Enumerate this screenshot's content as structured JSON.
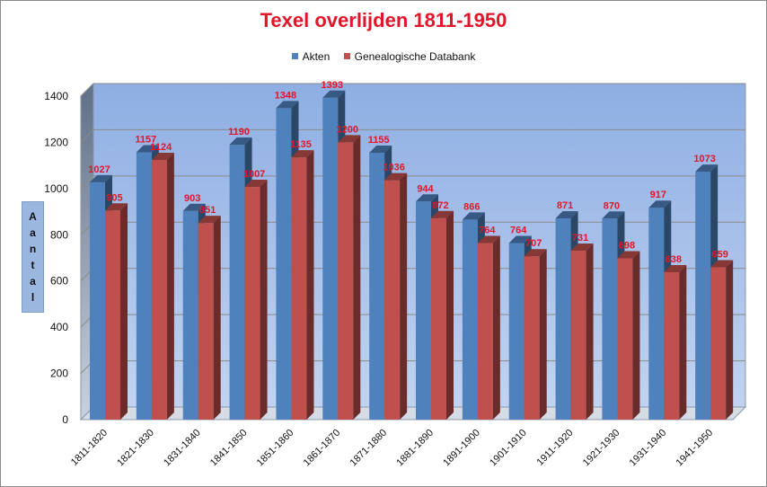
{
  "chart_data": {
    "type": "bar",
    "title": "Texel overlijden 1811-1950",
    "ylabel": "Aantal",
    "xlabel": "",
    "ylim": [
      0,
      1400
    ],
    "yticks": [
      0,
      200,
      400,
      600,
      800,
      1000,
      1200,
      1400
    ],
    "grid": true,
    "legend_position": "top-center",
    "three_d": true,
    "categories": [
      "1811-1820",
      "1821-1830",
      "1831-1840",
      "1841-1850",
      "1851-1860",
      "1861-1870",
      "1871-1880",
      "1881-1890",
      "1891-1900",
      "1901-1910",
      "1911-1920",
      "1921-1930",
      "1931-1940",
      "1941-1950"
    ],
    "series": [
      {
        "name": "Akten",
        "color": "#4f81bd",
        "values": [
          1027,
          1157,
          903,
          1190,
          1348,
          1393,
          1155,
          944,
          866,
          764,
          871,
          870,
          917,
          1073
        ]
      },
      {
        "name": "Genealogische Databank",
        "color": "#c0504d",
        "values": [
          905,
          1124,
          851,
          1007,
          1135,
          1200,
          1036,
          872,
          764,
          707,
          731,
          698,
          638,
          659
        ]
      }
    ],
    "data_label_color": "#e3152a",
    "plot_wall_color": "#a3bde9"
  }
}
